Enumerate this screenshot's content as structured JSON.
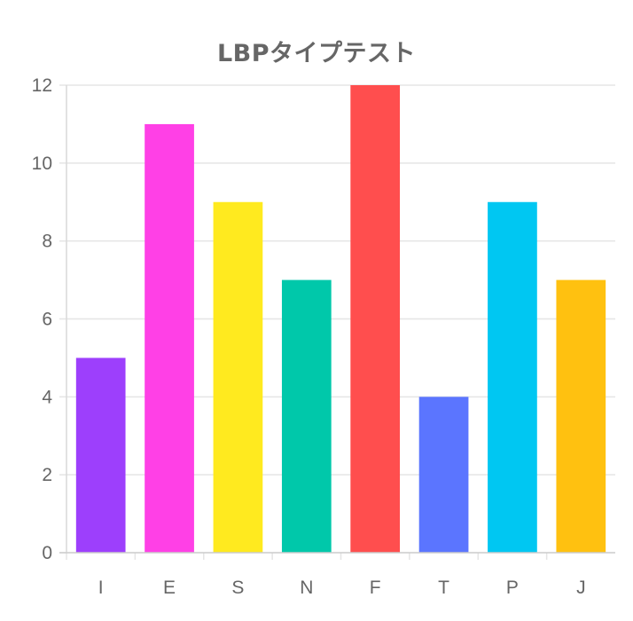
{
  "chart_data": {
    "type": "bar",
    "title": "LBPタイプテスト",
    "categories": [
      "I",
      "E",
      "S",
      "N",
      "F",
      "T",
      "P",
      "J"
    ],
    "values": [
      5,
      11,
      9,
      7,
      12,
      4,
      9,
      7
    ],
    "colors": [
      "#9d3ffc",
      "#ff40e6",
      "#ffea1f",
      "#00c8aa",
      "#ff4e4e",
      "#5b75ff",
      "#00c7f2",
      "#ffc110"
    ],
    "xlabel": "",
    "ylabel": "",
    "ylim": [
      0,
      12
    ],
    "yticks": [
      "0",
      "2",
      "4",
      "6",
      "8",
      "10",
      "12"
    ],
    "grid": true,
    "legend": "none"
  }
}
